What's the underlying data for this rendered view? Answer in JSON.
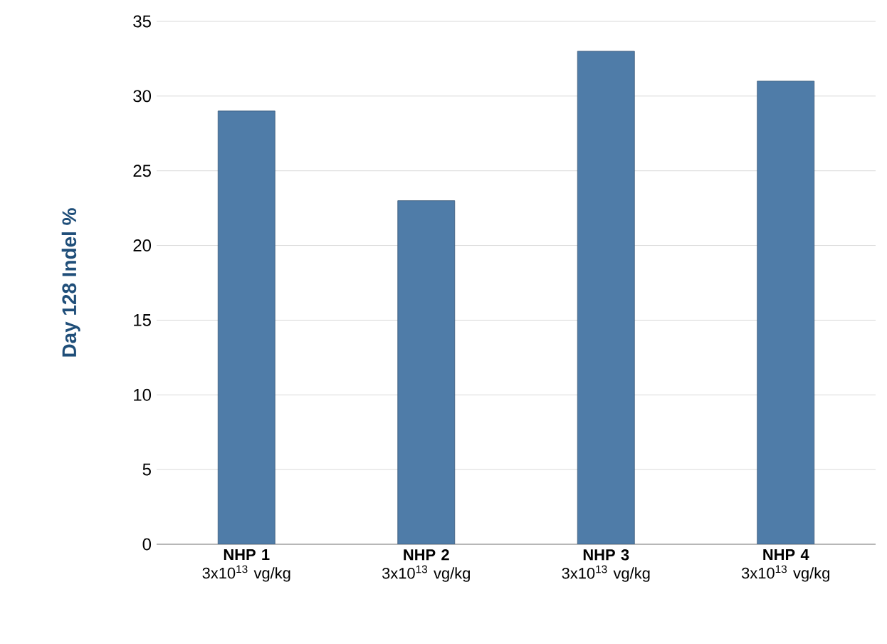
{
  "chart_data": {
    "type": "bar",
    "ylabel": "Day 128 Indel %",
    "categories": [
      "**NHP 1** 3x10$^{13}$ vg/kg",
      "**NHP 2** 3x10$^{13}$ vg/kg",
      "**NHP 3** 3x10$^{13}$ vg/kg",
      "**NHP 4** 3x10$^{13}$ vg/kg"
    ],
    "values": [
      29,
      23,
      33,
      31
    ],
    "color": "#4f7ca8",
    "ylim": [
      0,
      35
    ],
    "yticks": [
      0,
      5,
      10,
      15,
      20,
      25,
      30,
      35
    ],
    "grid": "y"
  }
}
